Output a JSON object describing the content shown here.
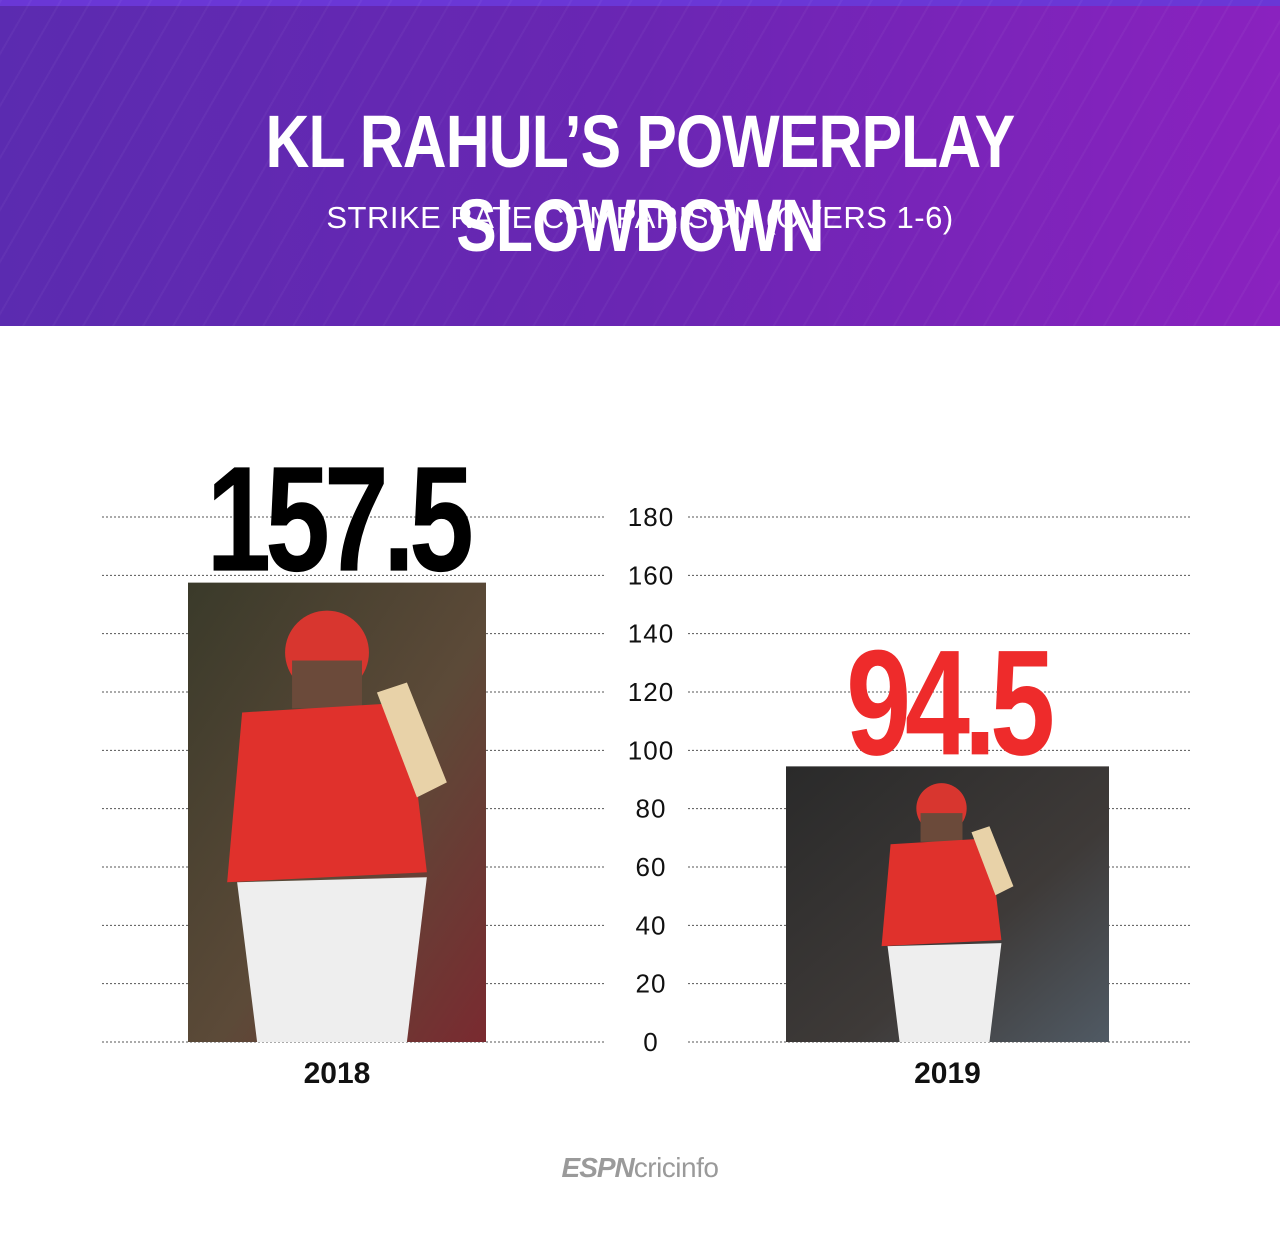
{
  "header": {
    "title": "KL RAHUL’S POWERPLAY SLOWDOWN",
    "subtitle": "STRIKE RATE COMPARISON (OVERS 1-6)"
  },
  "logo": {
    "brand_a": "ESPN",
    "brand_b": "cricinfo"
  },
  "colors": {
    "header_start": "#5b2bb0",
    "header_end": "#8a22bf",
    "value_2018": "#000000",
    "value_2019": "#ee2b2b",
    "grid": "#555555"
  },
  "icons": {
    "photo_2018": "batsman-photo-2018",
    "photo_2019": "batsman-photo-2019"
  },
  "chart_data": {
    "type": "bar",
    "title": "KL RAHUL’S POWERPLAY SLOWDOWN",
    "subtitle": "STRIKE RATE COMPARISON (OVERS 1-6)",
    "categories": [
      "2018",
      "2019"
    ],
    "values": [
      157.5,
      94.5
    ],
    "value_labels": [
      "157.5",
      "94.5"
    ],
    "yticks": [
      "0",
      "20",
      "40",
      "60",
      "80",
      "100",
      "120",
      "140",
      "160",
      "180"
    ],
    "ylim": [
      0,
      180
    ],
    "grid": true,
    "bar_style": "photo"
  }
}
